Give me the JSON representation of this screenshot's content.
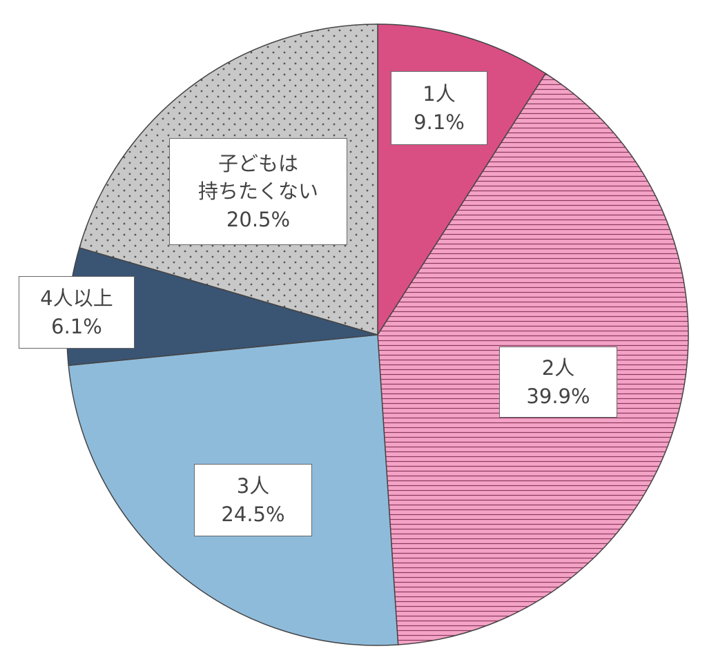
{
  "chart_data": {
    "type": "pie",
    "categories": [
      "1人",
      "2人",
      "3人",
      "4人以上",
      "子どもは\n持ちたくない"
    ],
    "values": [
      9.1,
      39.9,
      24.5,
      6.1,
      20.5
    ],
    "value_labels": [
      "9.1%",
      "39.9%",
      "24.5%",
      "6.1%",
      "20.5%"
    ],
    "colors": [
      "#d94f84",
      "#f4a3c6",
      "#8fbbdb",
      "#3a5474",
      "#c8c8c8"
    ],
    "patterns": [
      "solid",
      "stripes",
      "solid",
      "solid",
      "dots"
    ]
  }
}
